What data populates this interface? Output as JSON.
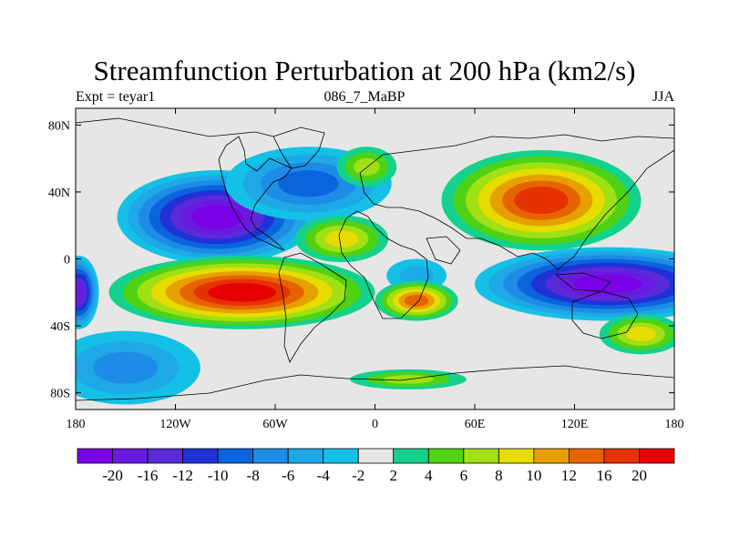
{
  "header": {
    "title": "Streamfunction Perturbation at 200 hPa (km2/s)",
    "left": "Expt = teyar1",
    "center": "086_7_MaBP",
    "right": "JJA"
  },
  "map": {
    "projection": "cylindrical equidistant",
    "lon_range": [
      -180,
      180
    ],
    "lat_range": [
      -90,
      90
    ],
    "background_color": "#e6e6e6",
    "x_ticks": [
      {
        "lon": -180,
        "label": "180"
      },
      {
        "lon": -120,
        "label": "120W"
      },
      {
        "lon": -60,
        "label": "60W"
      },
      {
        "lon": 0,
        "label": "0"
      },
      {
        "lon": 60,
        "label": "60E"
      },
      {
        "lon": 120,
        "label": "120E"
      },
      {
        "lon": 180,
        "label": "180"
      }
    ],
    "y_ticks": [
      {
        "lat": 80,
        "label": "80N"
      },
      {
        "lat": 40,
        "label": "40N"
      },
      {
        "lat": 0,
        "label": "0"
      },
      {
        "lat": -40,
        "label": "40S"
      },
      {
        "lat": -80,
        "label": "80S"
      }
    ]
  },
  "colorbar": {
    "colors": [
      "#7a00e6",
      "#6a1ae0",
      "#5a2ad8",
      "#1e32d8",
      "#0a64dc",
      "#1e8ce6",
      "#1ea8e6",
      "#14c0e6",
      "#e6e6e6",
      "#14d28c",
      "#50d214",
      "#a0e014",
      "#e6dc00",
      "#e6a000",
      "#e66400",
      "#e63200",
      "#e60000"
    ],
    "labels": [
      "-20",
      "-16",
      "-12",
      "-10",
      "-8",
      "-6",
      "-4",
      "-2",
      "2",
      "4",
      "6",
      "8",
      "10",
      "12",
      "16",
      "20"
    ]
  },
  "chart_data": {
    "type": "heatmap",
    "title": "Streamfunction Perturbation at 200 hPa (km2/s)",
    "variable": "streamfunction perturbation",
    "level": "200 hPa",
    "units": "km2/s",
    "season": "JJA",
    "experiment": "teyar1",
    "period": "086_7_MaBP",
    "contour_levels": [
      -20,
      -16,
      -12,
      -10,
      -8,
      -6,
      -4,
      -2,
      2,
      4,
      6,
      8,
      10,
      12,
      16,
      20
    ],
    "features": [
      {
        "lon": -95,
        "lat": 25,
        "value": -20,
        "sign": "negative"
      },
      {
        "lon": -40,
        "lat": 45,
        "value": -8,
        "sign": "negative"
      },
      {
        "lon": -150,
        "lat": -65,
        "value": -6,
        "sign": "negative"
      },
      {
        "lon": -178,
        "lat": -20,
        "value": -16,
        "sign": "negative"
      },
      {
        "lon": 140,
        "lat": -15,
        "value": -20,
        "sign": "negative"
      },
      {
        "lon": 25,
        "lat": -10,
        "value": -4,
        "sign": "negative"
      },
      {
        "lon": 100,
        "lat": 35,
        "value": 16,
        "sign": "positive"
      },
      {
        "lon": -80,
        "lat": -20,
        "value": 20,
        "sign": "positive"
      },
      {
        "lon": 25,
        "lat": -25,
        "value": 12,
        "sign": "positive"
      },
      {
        "lon": -5,
        "lat": 55,
        "value": 6,
        "sign": "positive"
      },
      {
        "lon": -20,
        "lat": 12,
        "value": 8,
        "sign": "positive"
      },
      {
        "lon": 160,
        "lat": -45,
        "value": 8,
        "sign": "positive"
      },
      {
        "lon": 20,
        "lat": -72,
        "value": 6,
        "sign": "positive"
      }
    ]
  }
}
